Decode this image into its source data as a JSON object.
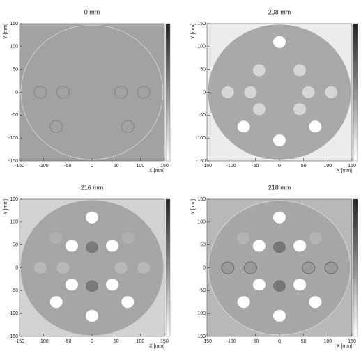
{
  "chart_data": [
    {
      "type": "image",
      "title": "0 mm",
      "xlabel": "X [mm]",
      "ylabel": "Y [mm]",
      "xlim": [
        -150,
        150
      ],
      "ylim": [
        -150,
        150
      ],
      "xticks": [
        -150,
        -100,
        -50,
        0,
        50,
        100,
        150
      ],
      "yticks": [
        -150,
        -100,
        -50,
        0,
        50,
        100,
        150
      ]
    },
    {
      "type": "image",
      "title": "208 mm",
      "xlabel": "X [mm]",
      "ylabel": "Y [mm]",
      "xlim": [
        -150,
        150
      ],
      "ylim": [
        -150,
        150
      ],
      "xticks": [
        -150,
        -100,
        -50,
        0,
        50,
        100,
        150
      ],
      "yticks": [
        -150,
        -100,
        -50,
        0,
        50,
        100,
        150
      ]
    },
    {
      "type": "image",
      "title": "216 mm",
      "xlabel": "X [mm]",
      "ylabel": "Y [mm]",
      "xlim": [
        -150,
        150
      ],
      "ylim": [
        -150,
        150
      ],
      "xticks": [
        -150,
        -100,
        -50,
        0,
        50,
        100,
        150
      ],
      "yticks": [
        -150,
        -100,
        -50,
        0,
        50,
        100,
        150
      ]
    },
    {
      "type": "image",
      "title": "218 mm",
      "xlabel": "X [mm]",
      "ylabel": "Y [mm]",
      "xlim": [
        -150,
        150
      ],
      "ylim": [
        -150,
        150
      ],
      "xticks": [
        -150,
        -100,
        -50,
        0,
        50,
        100,
        150
      ],
      "yticks": [
        -150,
        -100,
        -50,
        0,
        50,
        100,
        150
      ]
    }
  ]
}
